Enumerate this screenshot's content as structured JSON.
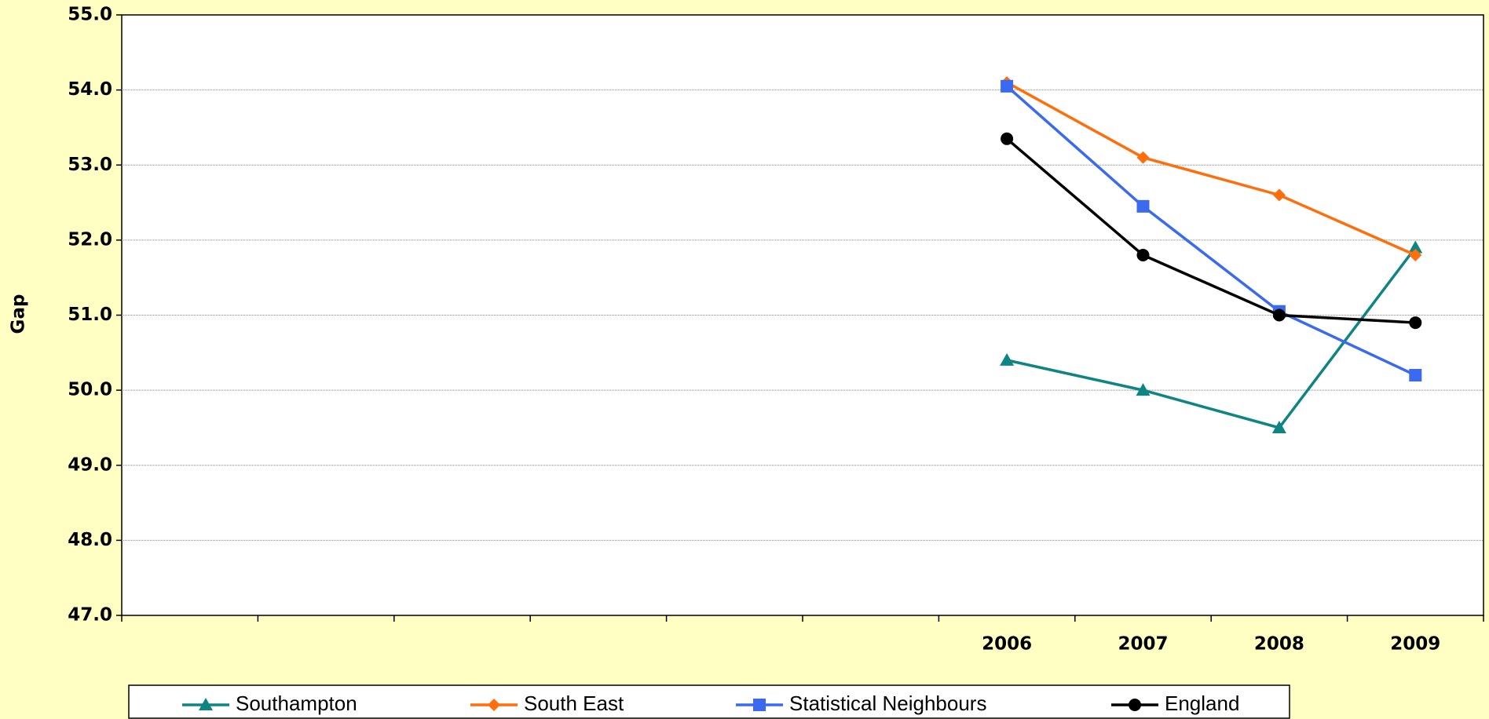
{
  "chart_data": {
    "type": "line",
    "y_label": "Gap",
    "categories": [
      null,
      null,
      null,
      null,
      null,
      null,
      "2006",
      "2007",
      "2008",
      "2009"
    ],
    "series": [
      {
        "name": "Southampton",
        "color": "#0e8582",
        "marker": "triangle",
        "values": [
          null,
          null,
          null,
          null,
          null,
          null,
          50.4,
          50.0,
          49.5,
          51.9
        ]
      },
      {
        "name": "South East",
        "color": "#ff6e0a",
        "marker": "diamond",
        "values": [
          null,
          null,
          null,
          null,
          null,
          null,
          54.1,
          53.1,
          52.6,
          51.8
        ]
      },
      {
        "name": "Statistical Neighbours",
        "color": "#3a6af0",
        "marker": "square",
        "values": [
          null,
          null,
          null,
          null,
          null,
          null,
          54.05,
          52.45,
          51.05,
          50.2
        ]
      },
      {
        "name": "England",
        "color": "#000000",
        "marker": "circle",
        "values": [
          null,
          null,
          null,
          null,
          null,
          null,
          53.35,
          51.8,
          51.0,
          50.9
        ]
      }
    ],
    "ylim": [
      47,
      55
    ],
    "yticks": [
      {
        "value": 47,
        "label": "47.0"
      },
      {
        "value": 48,
        "label": "48.0"
      },
      {
        "value": 49,
        "label": "49.0"
      },
      {
        "value": 50,
        "label": "50.0"
      },
      {
        "value": 51,
        "label": "51.0"
      },
      {
        "value": 52,
        "label": "52.0"
      },
      {
        "value": 53,
        "label": "53.0"
      },
      {
        "value": 54,
        "label": "54.0"
      },
      {
        "value": 55,
        "label": "55.0"
      }
    ],
    "grid": true,
    "legend": "bottom"
  }
}
